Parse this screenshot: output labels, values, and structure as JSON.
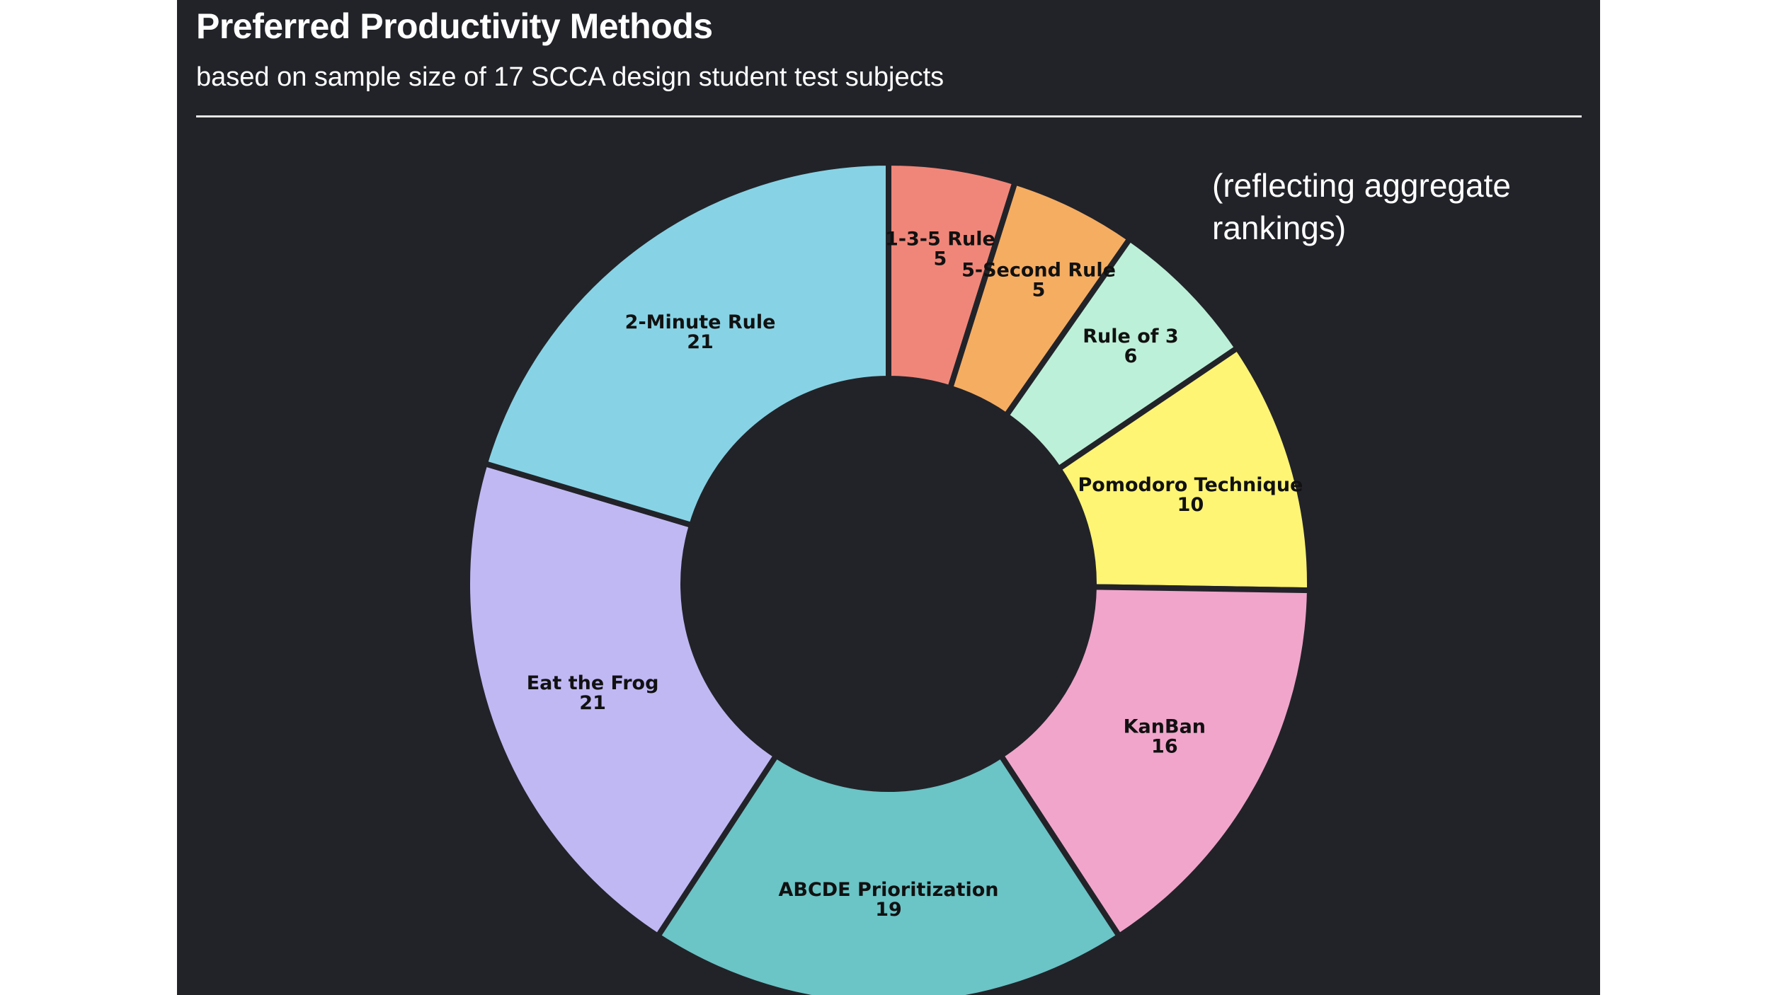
{
  "header": {
    "title": "Preferred Productivity Methods",
    "subtitle": "based on sample size of 17 SCCA design student test subjects"
  },
  "annotation": "(reflecting aggregate rankings)",
  "colors": {
    "panel_background": "#222329",
    "slice_stroke": "#222329",
    "text": "#ffffff"
  },
  "chart_data": {
    "type": "pie",
    "subtype": "donut",
    "title": "Preferred Productivity Methods",
    "subtitle": "based on sample size of 17 SCCA design student test subjects",
    "categories": [
      "1-3-5 Rule",
      "5-Second Rule",
      "Rule of 3",
      "Pomodoro Technique",
      "KanBan",
      "ABCDE Prioritization",
      "Eat the Frog",
      "2-Minute Rule"
    ],
    "values": [
      5,
      5,
      6,
      10,
      16,
      19,
      21,
      21
    ],
    "colors": [
      "#f08679",
      "#f5ad62",
      "#bdf0d8",
      "#fff574",
      "#f1a5cb",
      "#6bc4c6",
      "#c0b8f3",
      "#87d3e5"
    ],
    "direction": "clockwise from top",
    "legend": "none",
    "data_labels": "name and value on slice"
  }
}
